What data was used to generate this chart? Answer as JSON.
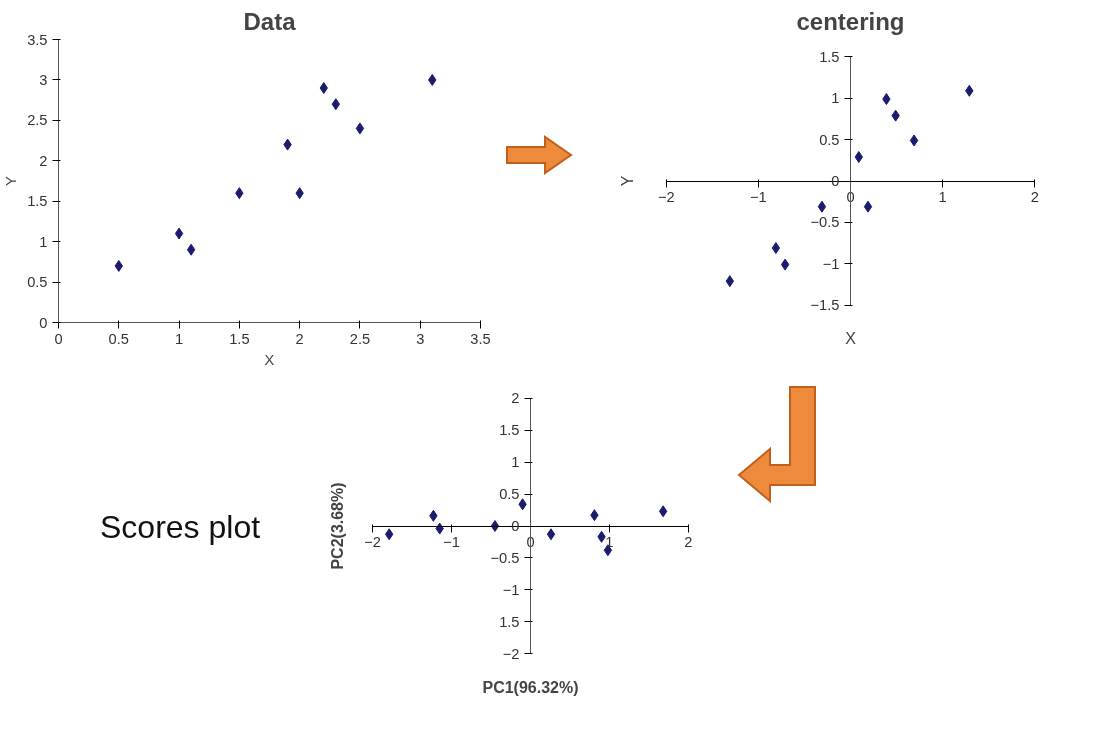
{
  "chart_data": [
    {
      "type": "scatter",
      "title": "Data",
      "xlabel": "X",
      "ylabel": "Y",
      "marker": "diamond",
      "grid": false,
      "xlim": [
        0,
        3.5
      ],
      "ylim": [
        0,
        3.5
      ],
      "xticks": [
        0,
        0.5,
        1,
        1.5,
        2,
        2.5,
        3,
        3.5
      ],
      "yticks": [
        0,
        0.5,
        1,
        1.5,
        2,
        2.5,
        3,
        3.5
      ],
      "series": [
        {
          "color": "#1c1c6e",
          "x": [
            0.5,
            1,
            1.1,
            1.5,
            1.9,
            2,
            2.2,
            2.3,
            2.5,
            3.1
          ],
          "values": [
            0.7,
            1.1,
            0.9,
            1.6,
            2.2,
            1.6,
            2.9,
            2.7,
            2.4,
            3.0
          ]
        }
      ]
    },
    {
      "type": "scatter",
      "title": "centering",
      "xlabel": "X",
      "ylabel": "Y",
      "marker": "diamond",
      "grid": false,
      "xlim": [
        -2,
        2
      ],
      "ylim": [
        -1.5,
        1.5
      ],
      "xticks": [
        -2,
        -1,
        0,
        1,
        2
      ],
      "yticks": [
        -1.5,
        -1,
        -0.5,
        0,
        0.5,
        1,
        1.5
      ],
      "series": [
        {
          "color": "#1c1c6e",
          "x": [
            -1.31,
            -0.81,
            -0.71,
            -0.31,
            0.09,
            0.19,
            0.39,
            0.49,
            0.69,
            1.29
          ],
          "values": [
            -1.21,
            -0.81,
            -1.01,
            -0.31,
            0.29,
            -0.31,
            0.99,
            0.79,
            0.49,
            1.09
          ]
        }
      ]
    },
    {
      "type": "scatter",
      "title": "Scores plot",
      "xlabel": "PC1(96.32%)",
      "ylabel": "PC2(3.68%)",
      "marker": "diamond",
      "grid": false,
      "xlim": [
        -2,
        2
      ],
      "ylim": [
        -2,
        2
      ],
      "xticks": [
        -2,
        -1,
        0,
        1,
        2
      ],
      "yticks": [
        -2,
        {
          "value": -1.5,
          "label": "1.5"
        },
        -1,
        -0.5,
        0,
        0.5,
        1,
        1.5,
        2
      ],
      "series": [
        {
          "color": "#1c1c6e",
          "x": [
            -1.79,
            -1.23,
            -1.15,
            -0.45,
            -0.1,
            0.26,
            0.81,
            0.9,
            0.98,
            1.68
          ],
          "values": [
            -0.13,
            0.16,
            -0.04,
            0.0,
            0.34,
            -0.13,
            0.17,
            -0.17,
            -0.38,
            0.23
          ]
        }
      ]
    }
  ]
}
